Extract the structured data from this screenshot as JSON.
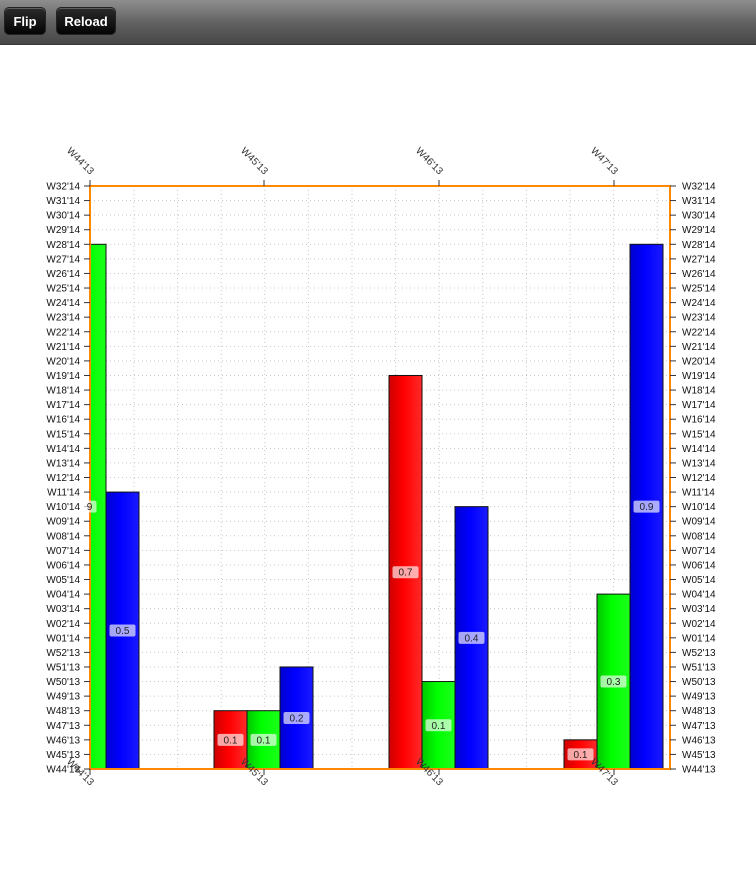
{
  "toolbar": {
    "flip_label": "Flip",
    "reload_label": "Reload"
  },
  "chart_data": {
    "type": "bar",
    "title": "",
    "xlabel": "",
    "ylabel": "",
    "categories": [
      "W44'13",
      "W45'13",
      "W46'13",
      "W47'13"
    ],
    "y_ticks": [
      "W44'13",
      "W45'13",
      "W46'13",
      "W47'13",
      "W48'13",
      "W49'13",
      "W50'13",
      "W51'13",
      "W52'13",
      "W01'14",
      "W02'14",
      "W03'14",
      "W04'14",
      "W05'14",
      "W06'14",
      "W07'14",
      "W08'14",
      "W09'14",
      "W10'14",
      "W11'14",
      "W12'14",
      "W13'14",
      "W14'14",
      "W15'14",
      "W16'14",
      "W17'14",
      "W18'14",
      "W19'14",
      "W20'14",
      "W21'14",
      "W22'14",
      "W23'14",
      "W24'14",
      "W25'14",
      "W26'14",
      "W27'14",
      "W28'14",
      "W29'14",
      "W30'14",
      "W31'14",
      "W32'14"
    ],
    "grid": true,
    "series": [
      {
        "color": "#ff0000",
        "bar_tops": [
          null,
          "W48'13",
          "W19'14",
          "W46'13"
        ],
        "labels": [
          "",
          "0.1",
          "0.7",
          "0.1"
        ]
      },
      {
        "color": "#00ff00",
        "bar_tops": [
          "W28'14",
          "W48'13",
          "W50'13",
          "W04'14"
        ],
        "labels": [
          "9",
          "0.1",
          "0.1",
          "0.3"
        ]
      },
      {
        "color": "#0000ff",
        "bar_tops": [
          "W11'14",
          "W51'13",
          "W10'14",
          "W28'14"
        ],
        "labels": [
          "0.5",
          "0.2",
          "0.4",
          "0.9"
        ]
      }
    ],
    "colors": {
      "frame": "#ff8800",
      "grid": "#c8c8c8"
    }
  }
}
